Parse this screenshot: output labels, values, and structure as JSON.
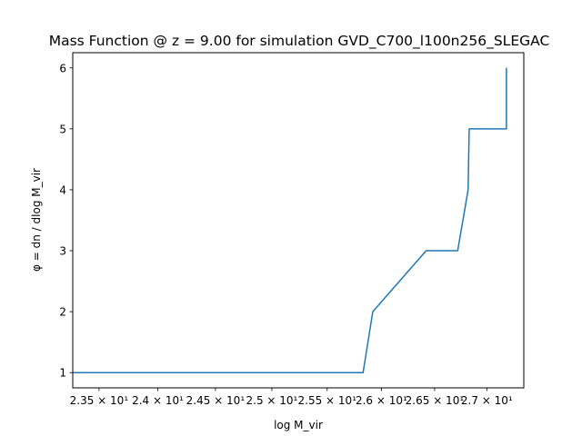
{
  "chart_data": {
    "type": "line",
    "title": "Mass Function @ z = 9.00 for simulation GVD_C700_l100n256_SLEGAC",
    "xlabel": "log M_vir",
    "ylabel": "φ = dn / dlog M_vir",
    "xlim": [
      23.28,
      27.36
    ],
    "ylim": [
      0.75,
      6.25
    ],
    "x_scale": "log",
    "grid": false,
    "legend": "none",
    "line_color": "#1f77b4",
    "x_ticks": [
      {
        "value": 23.5,
        "label": "2.35 × 10¹"
      },
      {
        "value": 24.0,
        "label": "2.4 × 10¹"
      },
      {
        "value": 24.5,
        "label": "2.45 × 10¹"
      },
      {
        "value": 25.0,
        "label": "2.5 × 10¹"
      },
      {
        "value": 25.5,
        "label": "2.55 × 10¹"
      },
      {
        "value": 26.0,
        "label": "2.6 × 10¹"
      },
      {
        "value": 26.5,
        "label": "2.65 × 10¹"
      },
      {
        "value": 27.0,
        "label": "2.7 × 10¹"
      }
    ],
    "y_ticks": [
      1,
      2,
      3,
      4,
      5,
      6
    ],
    "series": [
      {
        "x": [
          23.28,
          25.83,
          25.92,
          26.42,
          26.72,
          26.82,
          26.83,
          27.19,
          27.19
        ],
        "y": [
          1,
          1,
          2,
          3,
          3,
          4,
          5,
          5,
          6
        ]
      }
    ]
  }
}
